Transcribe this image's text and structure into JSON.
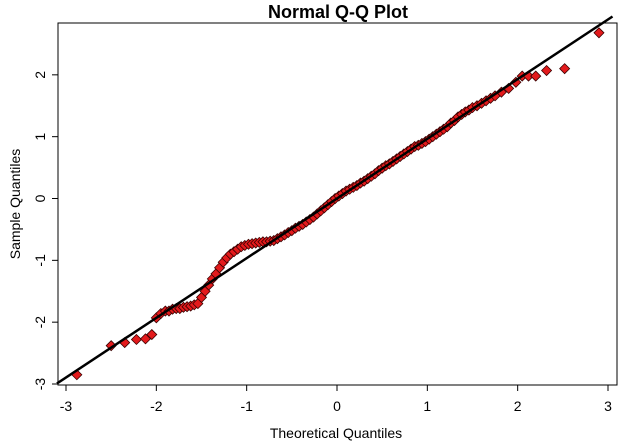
{
  "chart_data": {
    "type": "scatter",
    "title": "Normal Q-Q Plot",
    "xlabel": "Theoretical Quantiles",
    "ylabel": "Sample Quantiles",
    "xlim": [
      -3,
      3
    ],
    "ylim": [
      -3,
      3
    ],
    "xticks": [
      "-3",
      "-2",
      "-1",
      "0",
      "1",
      "2",
      "3"
    ],
    "yticks": [
      "-3",
      "-2",
      "-1",
      "0",
      "1",
      "2"
    ],
    "grid": false,
    "marker_fill": "#e31a1c",
    "marker_stroke": "#3a0000",
    "line_color": "#000000",
    "reference_line": {
      "intercept": 0.0,
      "slope": 0.965
    },
    "points": [
      [
        -2.88,
        -2.85
      ],
      [
        -2.5,
        -2.38
      ],
      [
        -2.35,
        -2.33
      ],
      [
        -2.22,
        -2.28
      ],
      [
        -2.12,
        -2.27
      ],
      [
        -2.05,
        -2.2
      ],
      [
        -2.0,
        -1.93
      ],
      [
        -1.95,
        -1.86
      ],
      [
        -1.9,
        -1.82
      ],
      [
        -1.86,
        -1.82
      ],
      [
        -1.82,
        -1.79
      ],
      [
        -1.78,
        -1.78
      ],
      [
        -1.74,
        -1.78
      ],
      [
        -1.7,
        -1.76
      ],
      [
        -1.66,
        -1.75
      ],
      [
        -1.62,
        -1.74
      ],
      [
        -1.58,
        -1.72
      ],
      [
        -1.54,
        -1.7
      ],
      [
        -1.5,
        -1.6
      ],
      [
        -1.46,
        -1.5
      ],
      [
        -1.42,
        -1.4
      ],
      [
        -1.38,
        -1.3
      ],
      [
        -1.34,
        -1.22
      ],
      [
        -1.3,
        -1.12
      ],
      [
        -1.26,
        -1.03
      ],
      [
        -1.22,
        -0.96
      ],
      [
        -1.18,
        -0.9
      ],
      [
        -1.14,
        -0.86
      ],
      [
        -1.1,
        -0.82
      ],
      [
        -1.06,
        -0.78
      ],
      [
        -1.02,
        -0.76
      ],
      [
        -0.98,
        -0.74
      ],
      [
        -0.94,
        -0.73
      ],
      [
        -0.9,
        -0.72
      ],
      [
        -0.86,
        -0.71
      ],
      [
        -0.82,
        -0.7
      ],
      [
        -0.78,
        -0.7
      ],
      [
        -0.74,
        -0.69
      ],
      [
        -0.7,
        -0.68
      ],
      [
        -0.66,
        -0.65
      ],
      [
        -0.62,
        -0.62
      ],
      [
        -0.58,
        -0.59
      ],
      [
        -0.54,
        -0.55
      ],
      [
        -0.5,
        -0.52
      ],
      [
        -0.46,
        -0.48
      ],
      [
        -0.42,
        -0.45
      ],
      [
        -0.38,
        -0.42
      ],
      [
        -0.34,
        -0.38
      ],
      [
        -0.3,
        -0.34
      ],
      [
        -0.26,
        -0.3
      ],
      [
        -0.22,
        -0.25
      ],
      [
        -0.18,
        -0.2
      ],
      [
        -0.14,
        -0.15
      ],
      [
        -0.1,
        -0.1
      ],
      [
        -0.06,
        -0.05
      ],
      [
        -0.02,
        0.0
      ],
      [
        0.02,
        0.04
      ],
      [
        0.06,
        0.08
      ],
      [
        0.1,
        0.12
      ],
      [
        0.14,
        0.15
      ],
      [
        0.18,
        0.18
      ],
      [
        0.22,
        0.21
      ],
      [
        0.26,
        0.25
      ],
      [
        0.3,
        0.28
      ],
      [
        0.34,
        0.32
      ],
      [
        0.38,
        0.36
      ],
      [
        0.42,
        0.4
      ],
      [
        0.46,
        0.45
      ],
      [
        0.5,
        0.49
      ],
      [
        0.54,
        0.53
      ],
      [
        0.58,
        0.56
      ],
      [
        0.62,
        0.6
      ],
      [
        0.66,
        0.64
      ],
      [
        0.7,
        0.68
      ],
      [
        0.74,
        0.72
      ],
      [
        0.78,
        0.76
      ],
      [
        0.82,
        0.8
      ],
      [
        0.86,
        0.84
      ],
      [
        0.9,
        0.86
      ],
      [
        0.94,
        0.89
      ],
      [
        0.98,
        0.92
      ],
      [
        1.02,
        0.96
      ],
      [
        1.06,
        1.0
      ],
      [
        1.1,
        1.04
      ],
      [
        1.14,
        1.08
      ],
      [
        1.18,
        1.12
      ],
      [
        1.22,
        1.16
      ],
      [
        1.26,
        1.22
      ],
      [
        1.3,
        1.26
      ],
      [
        1.34,
        1.32
      ],
      [
        1.38,
        1.36
      ],
      [
        1.42,
        1.4
      ],
      [
        1.46,
        1.43
      ],
      [
        1.5,
        1.47
      ],
      [
        1.55,
        1.5
      ],
      [
        1.6,
        1.54
      ],
      [
        1.65,
        1.58
      ],
      [
        1.7,
        1.62
      ],
      [
        1.75,
        1.66
      ],
      [
        1.82,
        1.72
      ],
      [
        1.9,
        1.78
      ],
      [
        1.98,
        1.88
      ],
      [
        2.05,
        1.98
      ],
      [
        2.12,
        1.98
      ],
      [
        2.2,
        1.98
      ],
      [
        2.32,
        2.07
      ],
      [
        2.52,
        2.1
      ],
      [
        2.9,
        2.68
      ]
    ]
  }
}
